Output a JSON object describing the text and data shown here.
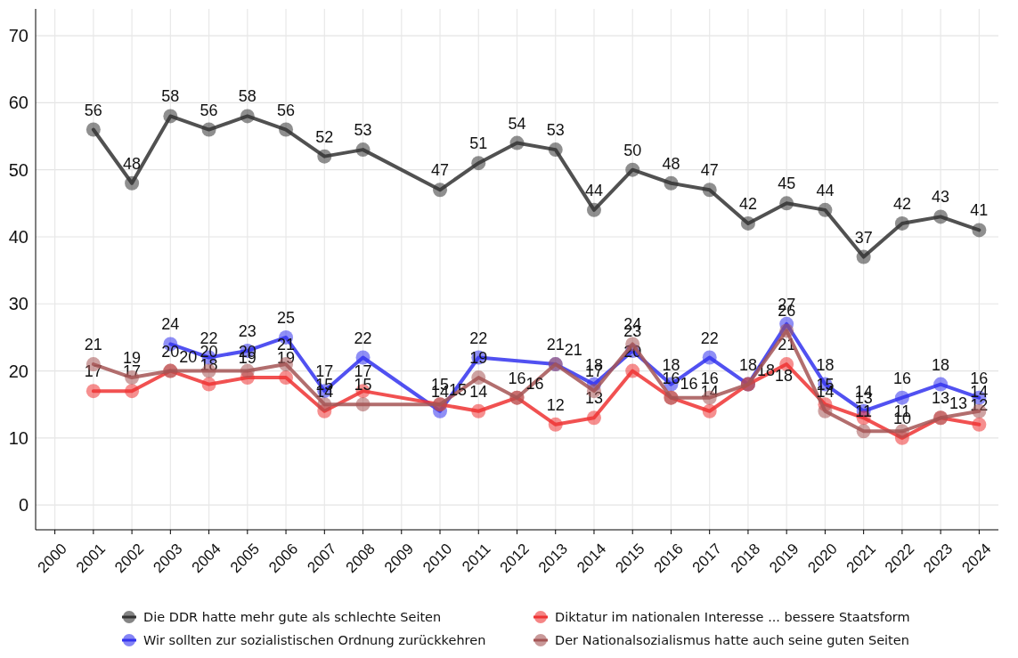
{
  "chart_data": {
    "type": "line",
    "x": [
      2001,
      2002,
      2003,
      2004,
      2005,
      2006,
      2007,
      2008,
      2010,
      2011,
      2012,
      2013,
      2014,
      2015,
      2016,
      2017,
      2018,
      2019,
      2020,
      2021,
      2022,
      2023,
      2024
    ],
    "series": [
      {
        "name": "Die DDR hatte mehr gute als schlechte Seiten",
        "color": "#333333",
        "values": [
          56,
          48,
          58,
          56,
          58,
          56,
          52,
          53,
          47,
          51,
          54,
          53,
          44,
          50,
          48,
          47,
          42,
          45,
          44,
          37,
          42,
          43,
          41
        ]
      },
      {
        "name": "Wir sollten zur sozialistischen Ordnung zurückkehren",
        "color": "#3333ee",
        "x": [
          2003,
          2004,
          2005,
          2006,
          2007,
          2008,
          2010,
          2011,
          2013,
          2014,
          2015,
          2016,
          2017,
          2018,
          2019,
          2020,
          2021,
          2022,
          2023,
          2024
        ],
        "values": [
          24,
          22,
          23,
          25,
          17,
          22,
          14,
          22,
          21,
          18,
          23,
          18,
          22,
          18,
          27,
          18,
          14,
          16,
          18,
          16
        ]
      },
      {
        "name": "Diktatur im nationalen Interesse ... bessere Staatsform",
        "color": "#ee3333",
        "values": [
          17,
          17,
          20,
          18,
          19,
          19,
          14,
          17,
          15,
          14,
          16,
          12,
          13,
          20,
          16,
          14,
          18,
          21,
          15,
          13,
          10,
          13,
          12
        ]
      },
      {
        "name": "Der Nationalsozialismus hatte auch seine guten Seiten",
        "color": "#a55555",
        "values": [
          21,
          19,
          20,
          20,
          20,
          21,
          15,
          15,
          15,
          19,
          16,
          21,
          17,
          24,
          16,
          16,
          18,
          26,
          14,
          11,
          11,
          13,
          14
        ]
      }
    ],
    "xlim": [
      1999.5,
      2024.5
    ],
    "xticks": [
      2000,
      2001,
      2002,
      2003,
      2004,
      2005,
      2006,
      2007,
      2008,
      2009,
      2010,
      2011,
      2012,
      2013,
      2014,
      2015,
      2016,
      2017,
      2018,
      2019,
      2020,
      2021,
      2022,
      2023,
      2024
    ],
    "ylim": [
      -3.7,
      74
    ],
    "yticks": [
      0,
      10,
      20,
      30,
      40,
      50,
      60,
      70
    ],
    "grid": true,
    "marker": "circle",
    "line_style": "solid",
    "data_labels": true,
    "legend": "bottom"
  }
}
